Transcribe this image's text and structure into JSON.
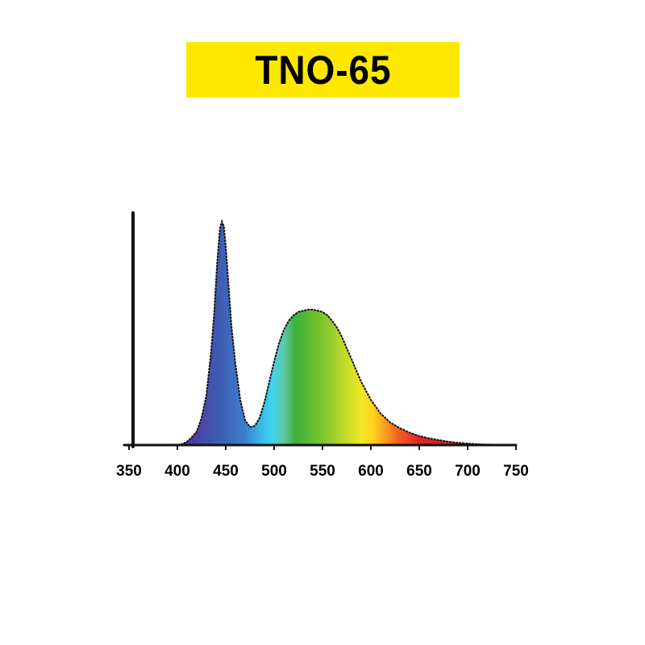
{
  "title": "TNO-65",
  "colors": {
    "banner": "#ffe800",
    "axis": "#111111"
  },
  "chart_data": {
    "type": "area",
    "title": "TNO-65",
    "xlabel": "",
    "ylabel": "",
    "xlim": [
      350,
      750
    ],
    "ylim": [
      0,
      1
    ],
    "x_ticks": [
      350,
      400,
      450,
      500,
      550,
      600,
      650,
      700,
      750
    ],
    "x_tick_labels": [
      "350",
      "400",
      "450",
      "500",
      "550",
      "600",
      "650",
      "700",
      "750"
    ],
    "grid": false,
    "legend": "none",
    "fill": "visible-spectrum-gradient",
    "x": [
      400,
      405,
      410,
      415,
      420,
      425,
      430,
      435,
      438,
      441,
      444,
      446,
      448,
      450,
      453,
      456,
      460,
      465,
      470,
      475,
      480,
      485,
      490,
      495,
      500,
      505,
      510,
      515,
      520,
      525,
      530,
      535,
      540,
      545,
      550,
      555,
      560,
      565,
      570,
      575,
      580,
      585,
      590,
      600,
      610,
      620,
      630,
      640,
      650,
      660,
      670,
      680,
      690,
      700,
      710,
      720,
      730,
      735
    ],
    "values": [
      0.0,
      0.005,
      0.015,
      0.035,
      0.06,
      0.12,
      0.22,
      0.42,
      0.58,
      0.8,
      0.96,
      0.99,
      0.97,
      0.88,
      0.7,
      0.52,
      0.36,
      0.2,
      0.11,
      0.08,
      0.085,
      0.12,
      0.19,
      0.28,
      0.37,
      0.45,
      0.51,
      0.55,
      0.575,
      0.59,
      0.595,
      0.6,
      0.6,
      0.595,
      0.59,
      0.575,
      0.55,
      0.52,
      0.48,
      0.43,
      0.38,
      0.33,
      0.28,
      0.2,
      0.14,
      0.1,
      0.075,
      0.055,
      0.04,
      0.03,
      0.022,
      0.015,
      0.01,
      0.007,
      0.004,
      0.002,
      0.001,
      0.0
    ]
  }
}
